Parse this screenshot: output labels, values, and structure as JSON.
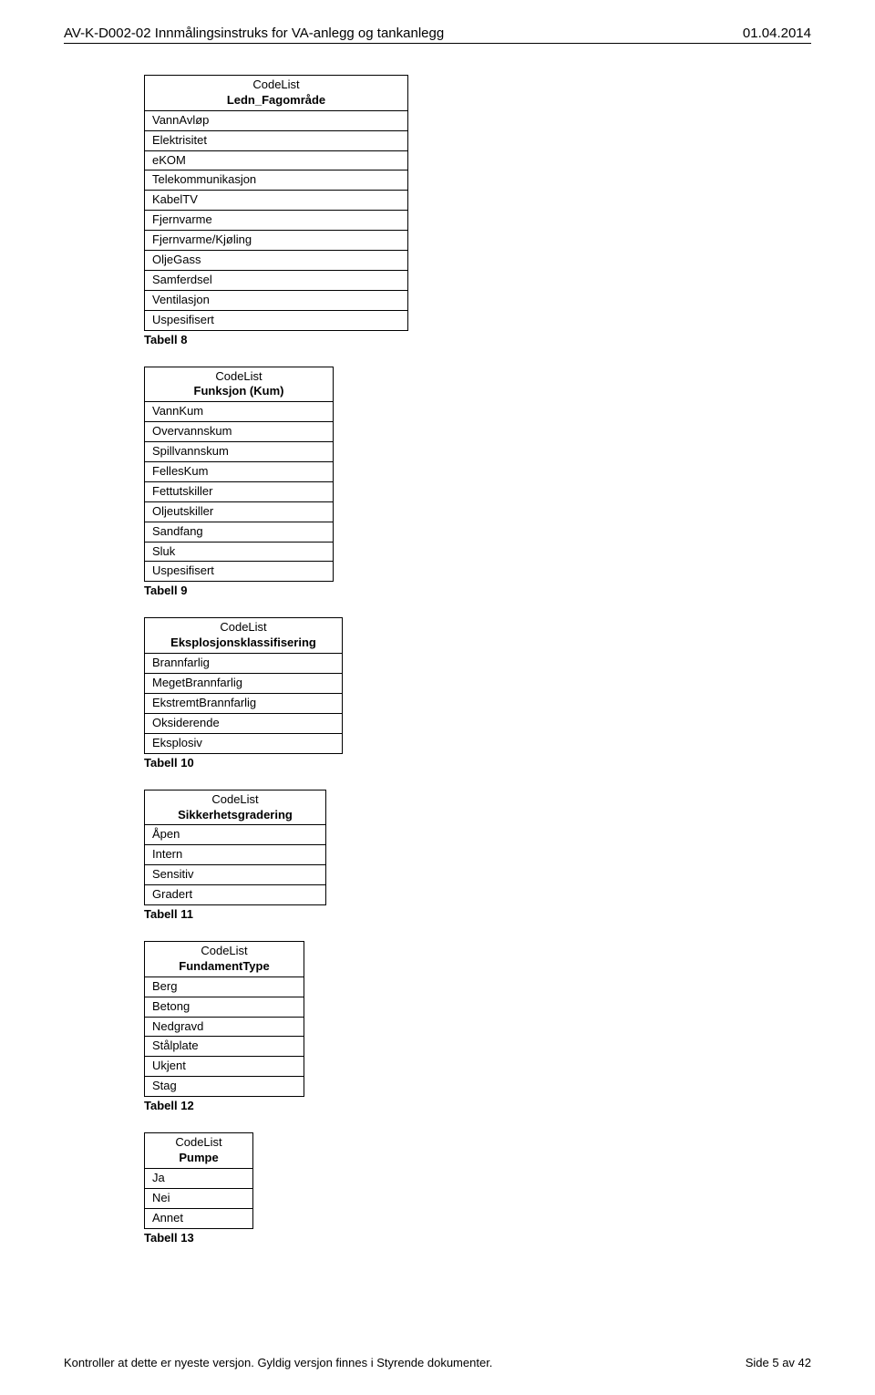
{
  "header": {
    "left": "AV-K-D002-02  Innmålingsinstruks for VA-anlegg og tankanlegg",
    "right": "01.04.2014"
  },
  "footer": {
    "left": "Kontroller at dette er nyeste versjon. Gyldig versjon finnes i Styrende dokumenter.",
    "right": "Side 5 av 42"
  },
  "codelist_label": "CodeList",
  "tables": [
    {
      "title": "Ledn_Fagområde",
      "width_class": "w1",
      "rows": [
        "VannAvløp",
        "Elektrisitet",
        "eKOM",
        "Telekommunikasjon",
        "KabelTV",
        "Fjernvarme",
        "Fjernvarme/Kjøling",
        "OljeGass",
        "Samferdsel",
        "Ventilasjon",
        "Uspesifisert"
      ],
      "caption": "Tabell 8"
    },
    {
      "title": "Funksjon (Kum)",
      "width_class": "w2",
      "rows": [
        "VannKum",
        "Overvannskum",
        "Spillvannskum",
        "FellesKum",
        "Fettutskiller",
        "Oljeutskiller",
        "Sandfang",
        "Sluk",
        "Uspesifisert"
      ],
      "caption": "Tabell 9"
    },
    {
      "title": "Eksplosjonsklassifisering",
      "width_class": "w3",
      "rows": [
        "Brannfarlig",
        "MegetBrannfarlig",
        "EkstremtBrannfarlig",
        "Oksiderende",
        "Eksplosiv"
      ],
      "caption": "Tabell 10"
    },
    {
      "title": "Sikkerhetsgradering",
      "width_class": "w4",
      "rows": [
        "Åpen",
        "Intern",
        "Sensitiv",
        "Gradert"
      ],
      "caption": "Tabell 11"
    },
    {
      "title": "FundamentType",
      "width_class": "w5",
      "rows": [
        "Berg",
        "Betong",
        "Nedgravd",
        "Stålplate",
        "Ukjent",
        "Stag"
      ],
      "caption": "Tabell 12"
    },
    {
      "title": "Pumpe",
      "width_class": "w6",
      "rows": [
        "Ja",
        "Nei",
        "Annet"
      ],
      "caption": "Tabell 13"
    }
  ]
}
